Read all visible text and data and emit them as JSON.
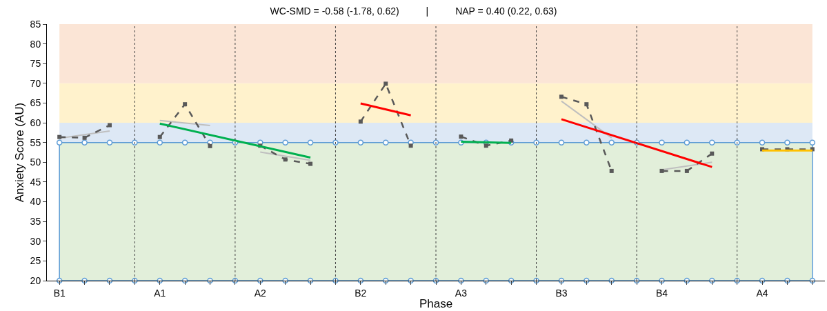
{
  "chart_data": {
    "type": "line",
    "title": "WC-SMD = -0.58 (-1.78, 0.62)          |          NAP = 0.40 (0.22, 0.63)",
    "xlabel": "Phase",
    "ylabel": "Anxiety Score (AU)",
    "ylim": [
      20,
      85
    ],
    "yticks": [
      20,
      25,
      30,
      35,
      40,
      45,
      50,
      55,
      60,
      65,
      70,
      75,
      80,
      85
    ],
    "categories": [
      "B1",
      null,
      null,
      null,
      "A1",
      null,
      null,
      null,
      "A2",
      null,
      null,
      null,
      "B2",
      null,
      null,
      null,
      "A3",
      null,
      null,
      null,
      "B3",
      null,
      null,
      null,
      "B4",
      null,
      null,
      null,
      "A4",
      null,
      null
    ],
    "grid": "x",
    "bands": [
      {
        "axis": "y",
        "from": 20,
        "to": 55,
        "color": "#e2efda"
      },
      {
        "axis": "y",
        "from": 55,
        "to": 60,
        "color": "#dde8f5"
      },
      {
        "axis": "y",
        "from": 60,
        "to": 70,
        "color": "#fff2cc"
      },
      {
        "axis": "y",
        "from": 70,
        "to": 85,
        "color": "#fbe5d6"
      }
    ],
    "series": [
      {
        "color": "#5b9bd5",
        "marker": "circle",
        "line_style": "solid",
        "values": [
          55,
          55,
          55,
          55,
          55,
          55,
          55,
          55,
          55,
          55,
          55,
          55,
          55,
          55,
          55,
          55,
          55,
          55,
          55,
          55,
          55,
          55,
          55,
          55,
          55,
          55,
          55,
          55,
          55,
          55,
          55
        ]
      },
      {
        "color": "#5b9bd5",
        "marker": "circle",
        "line_style": "solid",
        "values": [
          20,
          20,
          20,
          20,
          20,
          20,
          20,
          20,
          20,
          20,
          20,
          20,
          20,
          20,
          20,
          20,
          20,
          20,
          20,
          20,
          20,
          20,
          20,
          20,
          20,
          20,
          20,
          20,
          20,
          20,
          20
        ]
      },
      {
        "color": "#bfbfbf",
        "marker": "none",
        "line_style": "solid",
        "values": [
          56.1,
          null,
          57.9,
          null,
          60.6,
          null,
          59.3,
          null,
          52.6,
          null,
          50.5,
          null,
          null,
          null,
          null,
          null,
          null,
          null,
          null,
          null,
          65.5,
          null,
          56.2,
          null,
          48.1,
          null,
          50.0,
          null,
          null,
          null,
          null
        ]
      },
      {
        "color": "#595959",
        "marker": "square",
        "line_style": "dashed",
        "values": [
          56.4,
          56.2,
          59.4,
          null,
          56.4,
          64.7,
          54.1,
          null,
          54.2,
          50.7,
          49.6,
          null,
          60.3,
          69.9,
          54.2,
          null,
          56.5,
          54.2,
          55.5,
          null,
          66.6,
          64.7,
          47.8,
          null,
          47.8,
          47.8,
          52.2,
          null,
          53.3,
          53.3,
          53.3
        ]
      },
      {
        "color": "#00b050",
        "marker": "none",
        "line_style": "solid",
        "values": [
          null,
          null,
          null,
          null,
          59.8,
          null,
          null,
          null,
          null,
          null,
          51.2,
          null,
          null,
          null,
          null,
          null,
          55.2,
          null,
          54.9,
          null,
          null,
          null,
          null,
          null,
          null,
          null,
          null,
          null,
          null,
          null,
          null
        ]
      },
      {
        "color": "#ff0000",
        "marker": "none",
        "line_style": "solid",
        "values": [
          null,
          null,
          null,
          null,
          null,
          null,
          null,
          null,
          null,
          null,
          null,
          null,
          64.9,
          null,
          61.9,
          null,
          null,
          null,
          null,
          null,
          60.9,
          null,
          null,
          null,
          null,
          null,
          48.8,
          null,
          null,
          null,
          null
        ]
      },
      {
        "color": "#ffc000",
        "marker": "none",
        "line_style": "solid",
        "values": [
          null,
          null,
          null,
          null,
          null,
          null,
          null,
          null,
          null,
          null,
          null,
          null,
          null,
          null,
          null,
          null,
          null,
          null,
          null,
          null,
          null,
          null,
          null,
          null,
          null,
          null,
          null,
          null,
          53.0,
          null,
          53.0
        ]
      }
    ]
  }
}
